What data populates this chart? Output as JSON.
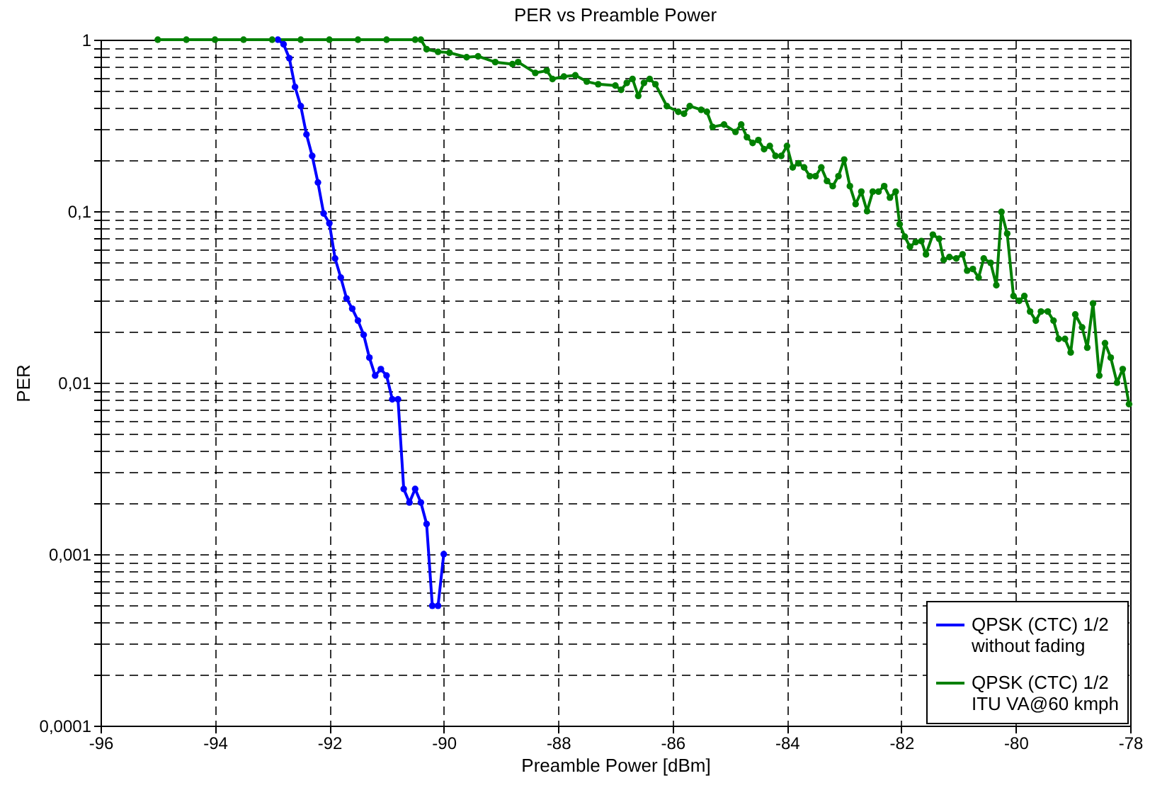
{
  "chart_data": {
    "type": "line",
    "title": "PER vs Preamble Power",
    "xlabel": "Preamble Power [dBm]",
    "ylabel": "PER",
    "log": "y",
    "grid": true,
    "legend": "bottom right",
    "marker": "circle",
    "line_style": "solid",
    "xlim": [
      -96,
      -78
    ],
    "xticks": [
      -96,
      -94,
      -92,
      -90,
      -88,
      -86,
      -84,
      -82,
      -80,
      -78
    ],
    "ylim": [
      0.0001,
      1
    ],
    "yticks": [
      {
        "value": 0.0001,
        "label": "0,0001"
      },
      {
        "value": 0.0002,
        "label": null
      },
      {
        "value": 0.0003,
        "label": null
      },
      {
        "value": 0.0004,
        "label": null
      },
      {
        "value": 0.0005,
        "label": null
      },
      {
        "value": 0.0006,
        "label": null
      },
      {
        "value": 0.0007,
        "label": null
      },
      {
        "value": 0.0008,
        "label": null
      },
      {
        "value": 0.0009,
        "label": null
      },
      {
        "value": 0.001,
        "label": "0,001"
      },
      {
        "value": 0.002,
        "label": null
      },
      {
        "value": 0.003,
        "label": null
      },
      {
        "value": 0.004,
        "label": null
      },
      {
        "value": 0.005,
        "label": null
      },
      {
        "value": 0.006,
        "label": null
      },
      {
        "value": 0.007,
        "label": null
      },
      {
        "value": 0.008,
        "label": null
      },
      {
        "value": 0.009,
        "label": null
      },
      {
        "value": 0.01,
        "label": "0,01"
      },
      {
        "value": 0.02,
        "label": null
      },
      {
        "value": 0.03,
        "label": null
      },
      {
        "value": 0.04,
        "label": null
      },
      {
        "value": 0.05,
        "label": null
      },
      {
        "value": 0.06,
        "label": null
      },
      {
        "value": 0.07,
        "label": null
      },
      {
        "value": 0.08,
        "label": null
      },
      {
        "value": 0.09,
        "label": null
      },
      {
        "value": 0.1,
        "label": "0,1"
      },
      {
        "value": 0.2,
        "label": null
      },
      {
        "value": 0.3,
        "label": null
      },
      {
        "value": 0.4,
        "label": null
      },
      {
        "value": 0.5,
        "label": null
      },
      {
        "value": 0.6,
        "label": null
      },
      {
        "value": 0.7,
        "label": null
      },
      {
        "value": 0.8,
        "label": null
      },
      {
        "value": 0.9,
        "label": null
      },
      {
        "value": 1,
        "label": "1"
      }
    ],
    "series": [
      {
        "name": "QPSK (CTC) 1/2\n without fading",
        "color": "#0000ff",
        "x": [
          -92.9,
          -92.8,
          -92.7,
          -92.6,
          -92.5,
          -92.4,
          -92.3,
          -92.2,
          -92.1,
          -92.0,
          -91.9,
          -91.8,
          -91.7,
          -91.6,
          -91.5,
          -91.4,
          -91.3,
          -91.2,
          -91.1,
          -91.0,
          -90.9,
          -90.8,
          -90.7,
          -90.6,
          -90.5,
          -90.4,
          -90.3,
          -90.2,
          -90.1,
          -90.0
        ],
        "values": [
          1,
          0.94,
          0.78,
          0.53,
          0.41,
          0.28,
          0.21,
          0.147,
          0.097,
          0.085,
          0.053,
          0.041,
          0.031,
          0.027,
          0.023,
          0.019,
          0.014,
          0.011,
          0.012,
          0.011,
          0.008,
          0.008,
          0.0024,
          0.002,
          0.0024,
          0.002,
          0.0015,
          0.0005,
          0.0005,
          0.001
        ]
      },
      {
        "name": "QPSK (CTC) 1/2\nITU VA@60 kmph",
        "color": "#008000",
        "x": [
          -95,
          -94.5,
          -94,
          -93.5,
          -93,
          -92.5,
          -92,
          -91.5,
          -91,
          -90.5,
          -90.4,
          -90.3,
          -90.1,
          -89.9,
          -89.6,
          -89.4,
          -89.1,
          -88.8,
          -88.7,
          -88.4,
          -88.2,
          -88.1,
          -87.9,
          -87.7,
          -87.5,
          -87.3,
          -87.0,
          -86.9,
          -86.8,
          -86.7,
          -86.6,
          -86.5,
          -86.4,
          -86.3,
          -86.1,
          -85.9,
          -85.8,
          -85.7,
          -85.5,
          -85.4,
          -85.3,
          -85.1,
          -84.9,
          -84.8,
          -84.7,
          -84.6,
          -84.5,
          -84.4,
          -84.3,
          -84.2,
          -84.1,
          -84.0,
          -83.9,
          -83.8,
          -83.7,
          -83.6,
          -83.5,
          -83.4,
          -83.3,
          -83.2,
          -83.1,
          -83.0,
          -82.9,
          -82.8,
          -82.7,
          -82.6,
          -82.5,
          -82.4,
          -82.3,
          -82.2,
          -82.1,
          -82.03,
          -81.94,
          -81.85,
          -81.75,
          -81.65,
          -81.57,
          -81.45,
          -81.34,
          -81.26,
          -81.16,
          -81.04,
          -80.93,
          -80.85,
          -80.75,
          -80.65,
          -80.56,
          -80.44,
          -80.34,
          -80.25,
          -80.15,
          -80.04,
          -79.94,
          -79.85,
          -79.75,
          -79.65,
          -79.56,
          -79.44,
          -79.34,
          -79.25,
          -79.14,
          -79.04,
          -78.96,
          -78.84,
          -78.75,
          -78.65,
          -78.54,
          -78.44,
          -78.34,
          -78.23,
          -78.13,
          -78.02
        ],
        "values": [
          1,
          1,
          1,
          1,
          1,
          1,
          1,
          1,
          1,
          1,
          1,
          0.88,
          0.85,
          0.84,
          0.79,
          0.8,
          0.74,
          0.72,
          0.74,
          0.64,
          0.66,
          0.59,
          0.61,
          0.62,
          0.57,
          0.55,
          0.54,
          0.51,
          0.56,
          0.59,
          0.47,
          0.56,
          0.59,
          0.55,
          0.41,
          0.38,
          0.37,
          0.41,
          0.39,
          0.38,
          0.31,
          0.32,
          0.29,
          0.32,
          0.27,
          0.25,
          0.26,
          0.23,
          0.24,
          0.21,
          0.21,
          0.24,
          0.18,
          0.19,
          0.18,
          0.16,
          0.16,
          0.18,
          0.15,
          0.14,
          0.16,
          0.2,
          0.14,
          0.11,
          0.13,
          0.1,
          0.13,
          0.13,
          0.14,
          0.12,
          0.13,
          0.084,
          0.071,
          0.062,
          0.066,
          0.067,
          0.056,
          0.073,
          0.069,
          0.052,
          0.054,
          0.053,
          0.056,
          0.045,
          0.046,
          0.041,
          0.053,
          0.05,
          0.037,
          0.099,
          0.074,
          0.032,
          0.03,
          0.032,
          0.026,
          0.023,
          0.026,
          0.026,
          0.023,
          0.018,
          0.018,
          0.015,
          0.025,
          0.021,
          0.016,
          0.029,
          0.011,
          0.017,
          0.014,
          0.01,
          0.012,
          0.0075
        ]
      }
    ]
  }
}
